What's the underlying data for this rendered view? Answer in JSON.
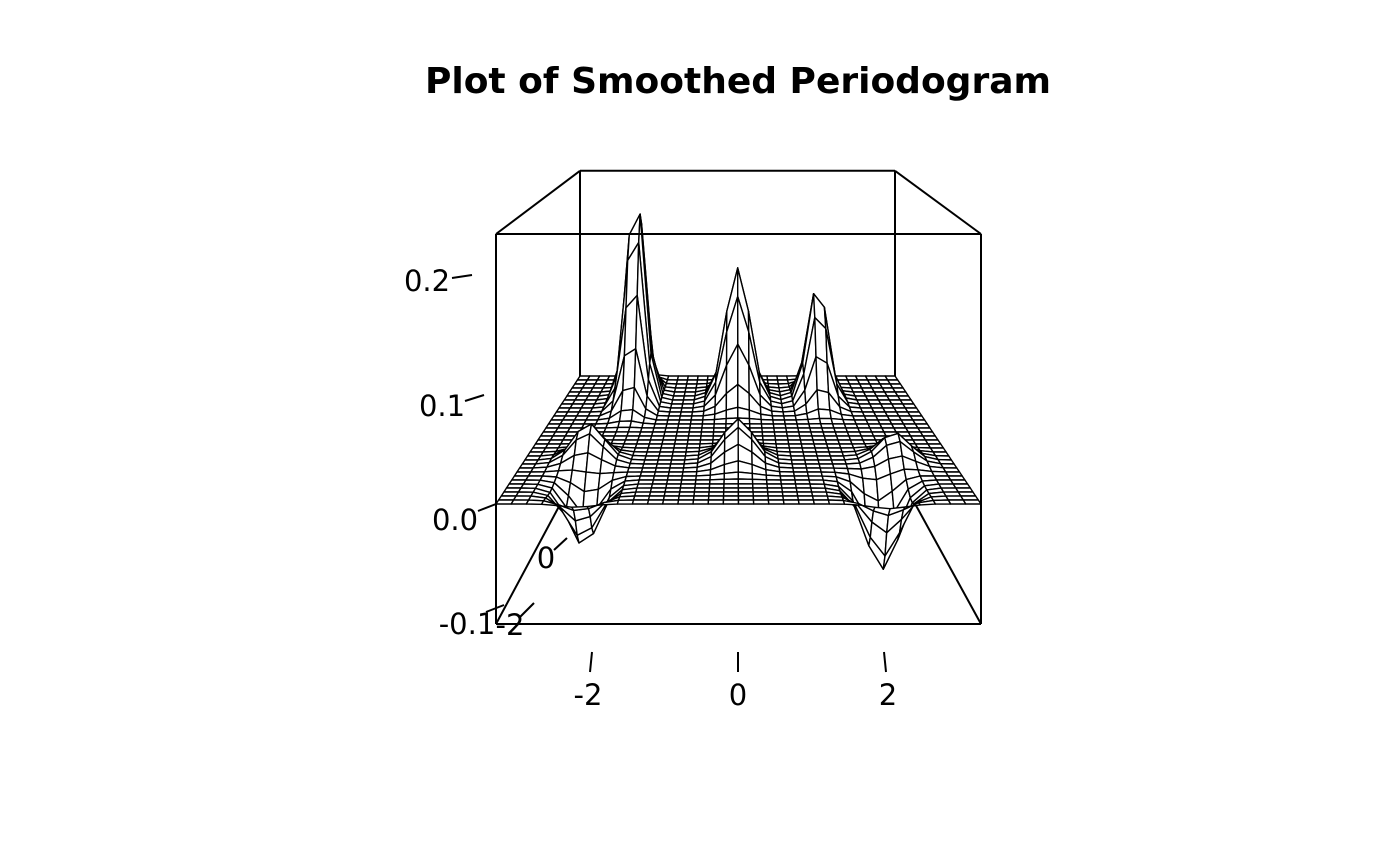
{
  "chart_data": {
    "type": "surface",
    "title": "Plot of Smoothed Periodogram",
    "xlabel": "",
    "ylabel": "",
    "zlabel": "",
    "xlim": [
      -3.1416,
      3.1416
    ],
    "ylim": [
      -3.1416,
      3.1416
    ],
    "zlim": [
      -0.12,
      0.27
    ],
    "x_ticks": [
      "-2",
      "0",
      "2"
    ],
    "y_ticks": [
      "-2",
      "0"
    ],
    "z_ticks": [
      "-0.1",
      "0.0",
      "0.1",
      "0.2"
    ],
    "grid_n": 32,
    "peaks": [
      {
        "x": -1.85,
        "y": 2.0,
        "height": 0.265,
        "sx": 0.16,
        "sy": 0.42
      },
      {
        "x": 0.0,
        "y": 2.0,
        "height": 0.165,
        "sx": 0.22,
        "sy": 0.35
      },
      {
        "x": 1.45,
        "y": 2.0,
        "height": 0.145,
        "sx": 0.18,
        "sy": 0.35
      },
      {
        "x": 0.0,
        "y": -1.0,
        "height": 0.045,
        "sx": 0.22,
        "sy": 0.35
      },
      {
        "x": -2.2,
        "y": -1.0,
        "height": 0.04,
        "sx": 0.22,
        "sy": 0.3
      },
      {
        "x": 2.3,
        "y": -1.0,
        "height": 0.03,
        "sx": 0.22,
        "sy": 0.3
      }
    ],
    "troughs": [
      {
        "x": -2.1,
        "y": -2.3,
        "depth": -0.06,
        "sx": 0.2,
        "sy": 0.35
      },
      {
        "x": 1.95,
        "y": -2.3,
        "depth": -0.085,
        "sx": 0.22,
        "sy": 0.35
      }
    ]
  }
}
